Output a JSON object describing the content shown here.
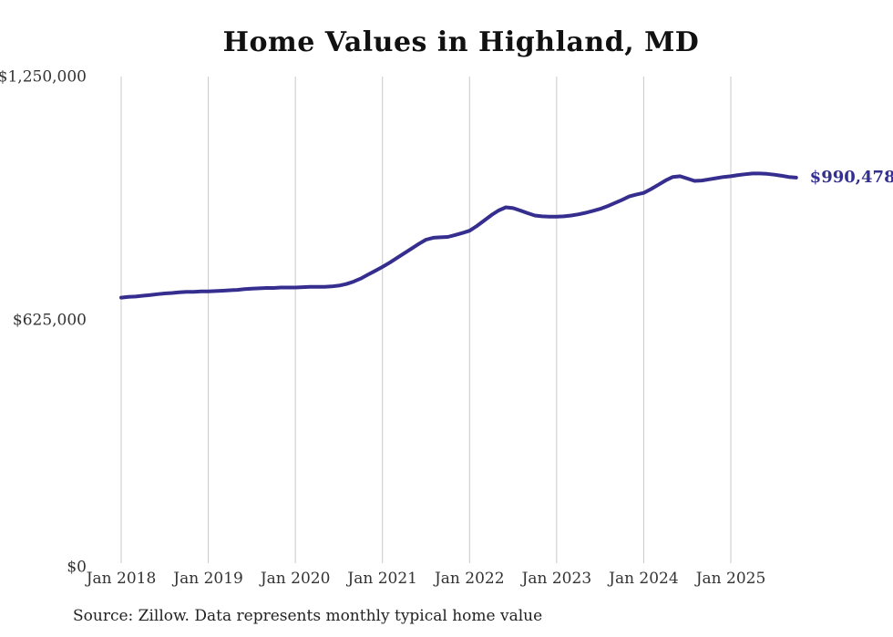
{
  "chart_data": {
    "type": "line",
    "title": "Home Values in Highland, MD",
    "xlabel": "",
    "ylabel": "",
    "ylim": [
      0,
      1250000
    ],
    "grid": "vertical-only",
    "legend": "none",
    "frequency": "monthly",
    "x_start": "Jan 2018",
    "x_end": "Oct 2025",
    "x_tick_labels": [
      "Jan 2018",
      "Jan 2019",
      "Jan 2020",
      "Jan 2021",
      "Jan 2022",
      "Jan 2023",
      "Jan 2024",
      "Jan 2025"
    ],
    "x_tick_interval_months": 12,
    "y_ticks": [
      {
        "label": "$0",
        "value": 0
      },
      {
        "label": "$625,000",
        "value": 625000
      },
      {
        "label": "$1,250,000",
        "value": 1250000
      }
    ],
    "series": [
      {
        "name": "Typical home value",
        "values": [
          682000,
          684000,
          685000,
          687000,
          689000,
          691000,
          693000,
          694000,
          696000,
          697000,
          697000,
          698000,
          698000,
          699000,
          700000,
          701000,
          702000,
          704000,
          705000,
          706000,
          707000,
          707000,
          708000,
          708000,
          708000,
          709000,
          710000,
          710000,
          710000,
          711000,
          713000,
          717000,
          723000,
          731000,
          741000,
          751000,
          761000,
          772000,
          784000,
          796000,
          808000,
          820000,
          831000,
          836000,
          837000,
          838000,
          843000,
          848000,
          854000,
          866000,
          880000,
          894000,
          906000,
          914000,
          912000,
          906000,
          899000,
          893000,
          891000,
          890000,
          890000,
          891000,
          893000,
          896000,
          900000,
          905000,
          910000,
          917000,
          925000,
          933000,
          942000,
          947000,
          951000,
          961000,
          972000,
          983000,
          992000,
          994000,
          988000,
          982000,
          983000,
          986000,
          989000,
          992000,
          994000,
          997000,
          999000,
          1001000,
          1001000,
          1000000,
          998000,
          995000,
          992000,
          990478
        ]
      }
    ],
    "end_label": "$990,478",
    "latest_value": 990478,
    "colors": {
      "line": "#352e8e",
      "end_label": "#33308f",
      "grid": "#c9c9c9",
      "tick_text": "#333333",
      "title_text": "#111111",
      "source_text": "#222222"
    }
  },
  "footer": {
    "source_note": "Source: Zillow. Data represents monthly typical home value"
  }
}
